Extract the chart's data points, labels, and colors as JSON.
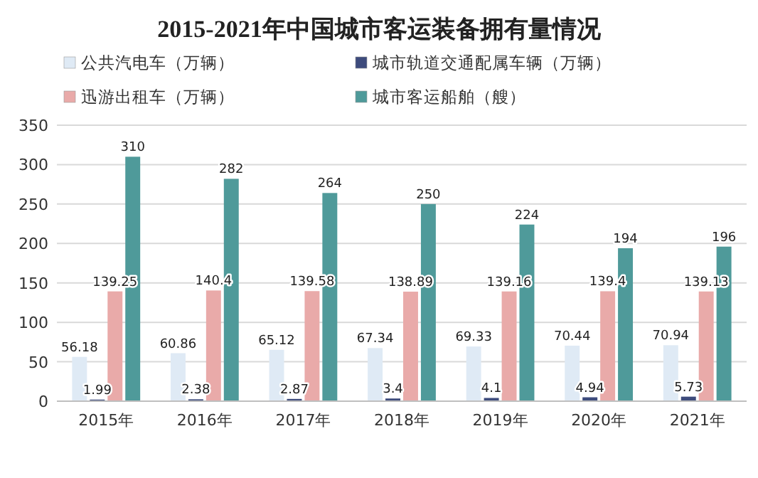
{
  "chart_data": {
    "type": "bar",
    "title": "2015-2021年中国城市客运装备拥有量情况",
    "categories": [
      "2015年",
      "2016年",
      "2017年",
      "2018年",
      "2019年",
      "2020年",
      "2021年"
    ],
    "series": [
      {
        "name": "公共汽电车（万辆）",
        "color": "#dfeaf5",
        "values": [
          56.18,
          60.86,
          65.12,
          67.34,
          69.33,
          70.44,
          70.94
        ]
      },
      {
        "name": "城市轨道交通配属车辆（万辆）",
        "color": "#3d4b7c",
        "values": [
          1.99,
          2.38,
          2.87,
          3.4,
          4.1,
          4.94,
          5.73
        ]
      },
      {
        "name": "迅游出租车（万辆）",
        "color": "#e9aaa9",
        "values": [
          139.25,
          140.4,
          139.58,
          138.89,
          139.16,
          139.4,
          139.13
        ]
      },
      {
        "name": "城市客运船舶（艘）",
        "color": "#4f9a9a",
        "values": [
          310,
          282,
          264,
          250,
          224,
          194,
          196
        ]
      }
    ],
    "ylim": [
      0,
      350
    ],
    "yticks": [
      0,
      50,
      100,
      150,
      200,
      250,
      300,
      350
    ],
    "grid": "y",
    "legend": "top",
    "data_labels": true
  }
}
